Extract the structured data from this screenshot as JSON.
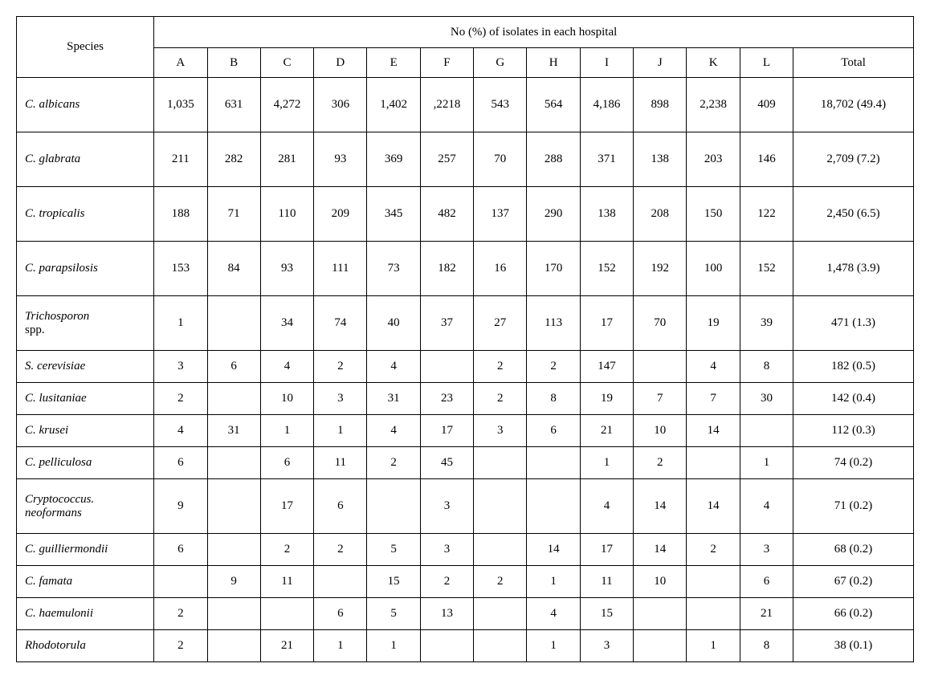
{
  "table": {
    "species_header": "Species",
    "group_header": "No (%) of isolates in each hospital",
    "columns": [
      "A",
      "B",
      "C",
      "D",
      "E",
      "F",
      "G",
      "H",
      "I",
      "J",
      "K",
      "L",
      "Total"
    ],
    "rows": [
      {
        "species_italic": "C. albicans",
        "species_roman": "",
        "tall": true,
        "cells": [
          "1,035",
          "631",
          "4,272",
          "306",
          "1,402",
          ",2218",
          "543",
          "564",
          "4,186",
          "898",
          "2,238",
          "409",
          "18,702 (49.4)"
        ]
      },
      {
        "species_italic": "C. glabrata",
        "species_roman": "",
        "tall": true,
        "cells": [
          "211",
          "282",
          "281",
          "93",
          "369",
          "257",
          "70",
          "288",
          "371",
          "138",
          "203",
          "146",
          "2,709 (7.2)"
        ]
      },
      {
        "species_italic": "C. tropicalis",
        "species_roman": "",
        "tall": true,
        "cells": [
          "188",
          "71",
          "110",
          "209",
          "345",
          "482",
          "137",
          "290",
          "138",
          "208",
          "150",
          "122",
          "2,450 (6.5)"
        ]
      },
      {
        "species_italic": "C. parapsilosis",
        "species_roman": "",
        "tall": true,
        "cells": [
          "153",
          "84",
          "93",
          "111",
          "73",
          "182",
          "16",
          "170",
          "152",
          "192",
          "100",
          "152",
          "1,478 (3.9)"
        ]
      },
      {
        "species_italic": "Trichosporon",
        "species_roman": "spp.",
        "tall": true,
        "cells": [
          "1",
          "",
          "34",
          "74",
          "40",
          "37",
          "27",
          "113",
          "17",
          "70",
          "19",
          "39",
          "471 (1.3)"
        ]
      },
      {
        "species_italic": "S. cerevisiae",
        "species_roman": "",
        "tall": false,
        "cells": [
          "3",
          "6",
          "4",
          "2",
          "4",
          "",
          "2",
          "2",
          "147",
          "",
          "4",
          "8",
          "182 (0.5)"
        ]
      },
      {
        "species_italic": "C. lusitaniae",
        "species_roman": "",
        "tall": false,
        "cells": [
          "2",
          "",
          "10",
          "3",
          "31",
          "23",
          "2",
          "8",
          "19",
          "7",
          "7",
          "30",
          "142 (0.4)"
        ]
      },
      {
        "species_italic": "C. krusei",
        "species_roman": "",
        "tall": false,
        "cells": [
          "4",
          "31",
          "1",
          "1",
          "4",
          "17",
          "3",
          "6",
          "21",
          "10",
          "14",
          "",
          "112 (0.3)"
        ]
      },
      {
        "species_italic": "C. pelliculosa",
        "species_roman": "",
        "tall": false,
        "cells": [
          "6",
          "",
          "6",
          "11",
          "2",
          "45",
          "",
          "",
          "1",
          "2",
          "",
          "1",
          "74 (0.2)"
        ]
      },
      {
        "species_italic": "Cryptococcus. neoformans",
        "species_roman": "",
        "tall": true,
        "cells": [
          "9",
          "",
          "17",
          "6",
          "",
          "3",
          "",
          "",
          "4",
          "14",
          "14",
          "4",
          "71 (0.2)"
        ]
      },
      {
        "species_italic": "C. guilliermondii",
        "species_roman": "",
        "tall": false,
        "cells": [
          "6",
          "",
          "2",
          "2",
          "5",
          "3",
          "",
          "14",
          "17",
          "14",
          "2",
          "3",
          "68 (0.2)"
        ]
      },
      {
        "species_italic": "C. famata",
        "species_roman": "",
        "tall": false,
        "cells": [
          "",
          "9",
          "11",
          "",
          "15",
          "2",
          "2",
          "1",
          "11",
          "10",
          "",
          "6",
          "67 (0.2)"
        ]
      },
      {
        "species_italic": "C. haemulonii",
        "species_roman": "",
        "tall": false,
        "cells": [
          "2",
          "",
          "",
          "6",
          "5",
          "13",
          "",
          "4",
          "15",
          "",
          "",
          "21",
          "66 (0.2)"
        ]
      },
      {
        "species_italic": "Rhodotorula",
        "species_roman": "",
        "tall": false,
        "cells": [
          "2",
          "",
          "21",
          "1",
          "1",
          "",
          "",
          "1",
          "3",
          "",
          "1",
          "8",
          "38 (0.1)"
        ]
      }
    ]
  }
}
